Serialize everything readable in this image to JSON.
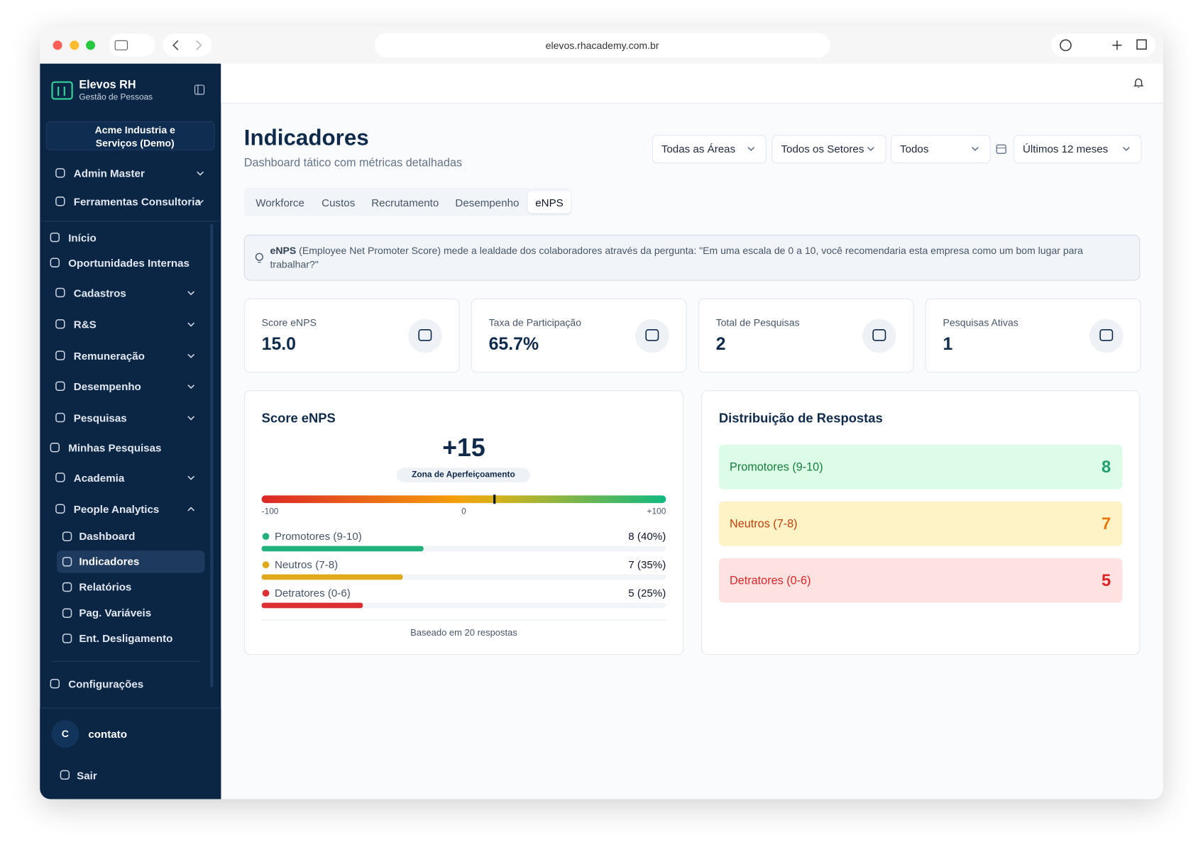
{
  "browser": {
    "url": "elevos.rhacademy.com.br"
  },
  "sidebar": {
    "brand": "Elevos RH",
    "tagline": "Gestão de Pessoas",
    "company": "Acme Industria e Serviços (Demo)",
    "top_menu": [
      "Admin Master",
      "Ferramentas Consultoria"
    ],
    "menu": [
      "Início",
      "Oportunidades Internas",
      "Cadastros",
      "R&S",
      "Remuneração",
      "Desempenho",
      "Pesquisas",
      "Minhas Pesquisas",
      "Academia",
      "People Analytics"
    ],
    "submenu": [
      "Dashboard",
      "Indicadores",
      "Relatórios",
      "Pag. Variáveis",
      "Ent. Desligamento"
    ],
    "settings": "Configurações",
    "user_initial": "C",
    "user": "contato",
    "logout": "Sair"
  },
  "header": {
    "title": "Indicadores",
    "subtitle": "Dashboard tático com métricas detalhadas",
    "filters": [
      "Todas as Áreas",
      "Todos os Setores",
      "Todos",
      "Últimos 12 meses"
    ]
  },
  "tabs": [
    "Workforce",
    "Custos",
    "Recrutamento",
    "Desempenho",
    "eNPS"
  ],
  "info": {
    "term": "eNPS",
    "text": " (Employee Net Promoter Score) mede a lealdade dos colaboradores através da pergunta: \"Em uma escala de 0 a 10, você recomendaria esta empresa como um bom lugar para trabalhar?\""
  },
  "kpis": [
    {
      "label": "Score eNPS",
      "value": "15.0"
    },
    {
      "label": "Taxa de Participação",
      "value": "65.7%"
    },
    {
      "label": "Total de Pesquisas",
      "value": "2"
    },
    {
      "label": "Pesquisas Ativas",
      "value": "1"
    }
  ],
  "score_card": {
    "title": "Score eNPS",
    "score": 15,
    "score_label": "+15",
    "zone": "Zona de Aperfeiçoamento",
    "lim": [
      -100,
      100
    ],
    "ticks": [
      {
        "value": -100,
        "label": "-100"
      },
      0,
      {
        "value": 100,
        "label": "+100"
      }
    ],
    "rows": [
      {
        "name": "Promotores (9-10)",
        "value": 40,
        "value_label": "8 (40%)",
        "color": "#22b07d"
      },
      {
        "name": "Neutros (7-8)",
        "value": 35,
        "value_label": "7 (35%)",
        "color": "#e0a91b"
      },
      {
        "name": "Detratores (0-6)",
        "value": 25,
        "value_label": "5 (25%)",
        "color": "#dc3030"
      }
    ],
    "footnote": "Baseado em 20 respostas"
  },
  "distribution": {
    "title": "Distribuição de Respostas",
    "rows": [
      {
        "name": "Promotores (9-10)",
        "value": 8
      },
      {
        "name": "Neutros (7-8)",
        "value": 7
      },
      {
        "name": "Detratores (0-6)",
        "value": 5
      }
    ]
  }
}
